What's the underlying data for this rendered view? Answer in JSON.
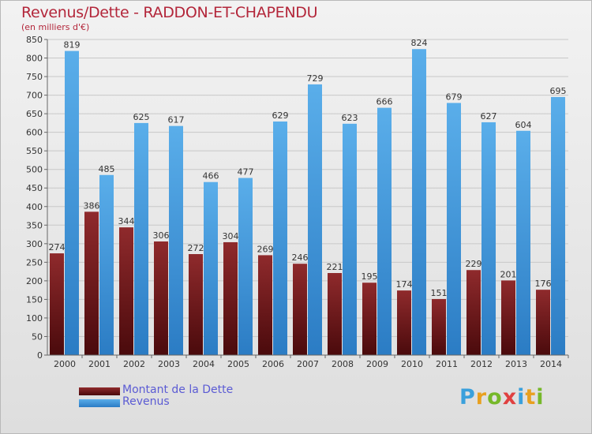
{
  "chart_data": {
    "type": "bar",
    "title": "Revenus/Dette - RADDON-ET-CHAPENDU",
    "subtitle": "(en milliers d'€)",
    "categories": [
      "2000",
      "2001",
      "2002",
      "2003",
      "2004",
      "2005",
      "2006",
      "2007",
      "2008",
      "2009",
      "2010",
      "2011",
      "2012",
      "2013",
      "2014"
    ],
    "series": [
      {
        "name": "Montant de la Dette",
        "color": "#7a1c1f",
        "values": [
          274,
          386,
          344,
          306,
          272,
          304,
          269,
          246,
          221,
          195,
          174,
          151,
          229,
          201,
          176
        ]
      },
      {
        "name": "Revenus",
        "color": "#4ea3e4",
        "values": [
          819,
          485,
          625,
          617,
          466,
          477,
          629,
          729,
          623,
          666,
          824,
          679,
          627,
          604,
          695
        ]
      }
    ],
    "yticks": [
      0,
      50,
      100,
      150,
      200,
      250,
      300,
      350,
      400,
      450,
      500,
      550,
      600,
      650,
      700,
      750,
      800,
      850
    ],
    "ylim": [
      0,
      850
    ],
    "grid": true,
    "legend_position": "bottom-left"
  },
  "logo": {
    "text": "Proxiti"
  }
}
